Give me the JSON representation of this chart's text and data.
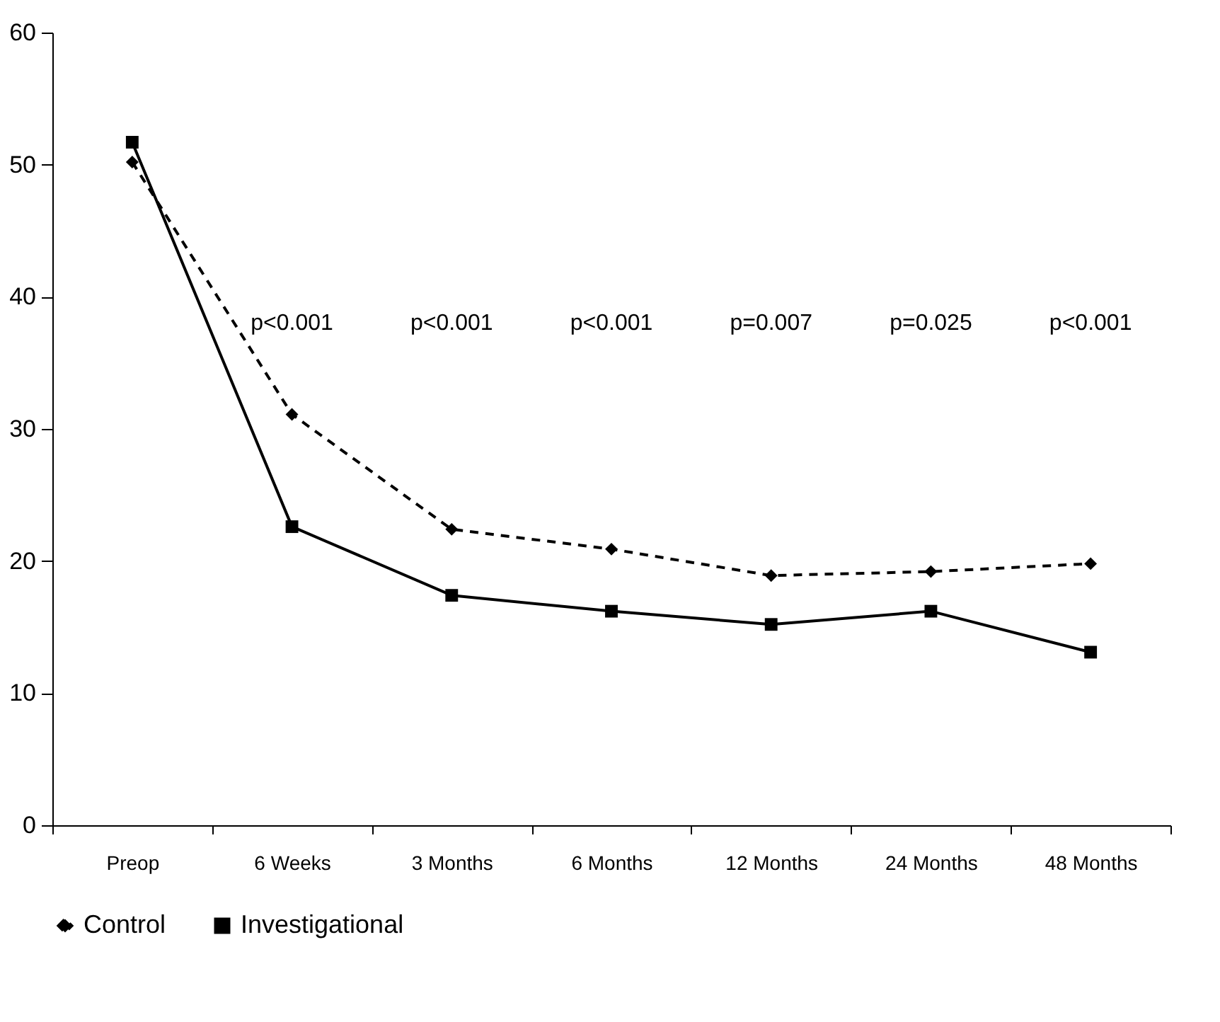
{
  "chart_data": {
    "type": "line",
    "categories": [
      "Preop",
      "6 Weeks",
      "3 Months",
      "6 Months",
      "12 Months",
      "24 Months",
      "48 Months"
    ],
    "series": [
      {
        "name": "Control",
        "color": "#000000",
        "line_style": "dashed",
        "marker": "diamond",
        "values": [
          50.2,
          31.1,
          22.4,
          20.9,
          18.9,
          19.2,
          19.8
        ]
      },
      {
        "name": "Investigational",
        "color": "#000000",
        "line_style": "solid",
        "marker": "square",
        "values": [
          51.7,
          22.6,
          17.4,
          16.2,
          15.2,
          16.2,
          13.1
        ]
      }
    ],
    "ylim": [
      0,
      60
    ],
    "yticks": [
      0,
      10,
      20,
      30,
      40,
      50,
      60
    ],
    "grid": false,
    "legend": "bottom",
    "annotations": [
      "p<0.001",
      "p<0.001",
      "p<0.001",
      "p=0.007",
      "p=0.025",
      "p<0.001"
    ]
  }
}
